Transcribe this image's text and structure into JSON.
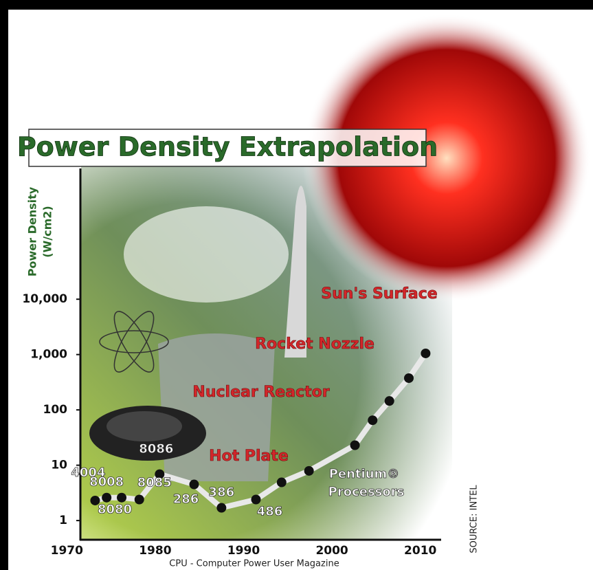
{
  "chart_data": {
    "type": "line",
    "title": "Power Density Extrapolation",
    "ylabel": [
      "Power Density",
      "(W/cm2)"
    ],
    "log_y": true,
    "x": [
      1973.2,
      1974.5,
      1976.2,
      1978.2,
      1980.5,
      1984.4,
      1987.5,
      1991.4,
      1994.3,
      1997.4,
      2002.6,
      2004.6,
      2006.5,
      2008.7,
      2010.6
    ],
    "values": [
      2.3,
      2.6,
      2.6,
      2.4,
      6.9,
      4.5,
      1.7,
      2.4,
      4.9,
      7.9,
      23,
      65,
      145,
      375,
      1050
    ],
    "labels": [
      "4004",
      "8008",
      "8080",
      "8085",
      "8086",
      "286",
      "386",
      "486",
      null,
      null,
      null,
      null,
      null,
      null,
      null
    ],
    "color": "#e8e8e8",
    "xlim": [
      1968.5,
      2012.2
    ],
    "xticks": [
      1970,
      1980,
      1990,
      2000,
      2010
    ],
    "ylim": [
      0.45,
      2000000
    ],
    "yticks": [
      1,
      10,
      100,
      {
        "value": 1000,
        "label": "1,000"
      },
      {
        "value": 10000,
        "label": "10,000"
      }
    ],
    "annotations": [
      "Sun's Surface",
      "Rocket Nozzle",
      "Nuclear Reactor",
      "Hot Plate",
      "Pentium®",
      "Processors"
    ],
    "source": "SOURCE: INTEL",
    "footer": "CPU - Computer Power User Magazine"
  }
}
